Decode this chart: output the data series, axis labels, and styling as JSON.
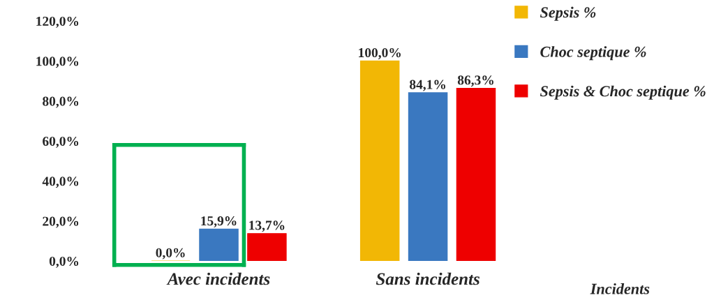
{
  "chart_data": {
    "type": "bar",
    "categories": [
      "Avec incidents",
      "Sans incidents"
    ],
    "xlabel": "Incidents",
    "series": [
      {
        "name": "Sepsis %",
        "color": "#f2b705",
        "values": [
          0.0,
          100.0
        ],
        "value_labels": [
          "0,0%",
          "100,0%"
        ]
      },
      {
        "name": "Choc septique %",
        "color": "#3a78c0",
        "values": [
          15.9,
          84.1
        ],
        "value_labels": [
          "15,9%",
          "84,1%"
        ]
      },
      {
        "name": "Sepsis & Choc septique %",
        "color": "#ee0000",
        "values": [
          13.7,
          86.3
        ],
        "value_labels": [
          "13,7%",
          "86,3%"
        ]
      }
    ],
    "ylim": [
      0,
      120
    ],
    "yticks": [
      {
        "value": 0,
        "label": "0,0%"
      },
      {
        "value": 20,
        "label": "20,0%"
      },
      {
        "value": 40,
        "label": "40,0%"
      },
      {
        "value": 60,
        "label": "60,0%"
      },
      {
        "value": 80,
        "label": "80,0%"
      },
      {
        "value": 100,
        "label": "100,0%"
      },
      {
        "value": 120,
        "label": "120,0%"
      }
    ],
    "legend": "top right",
    "grid": false
  }
}
